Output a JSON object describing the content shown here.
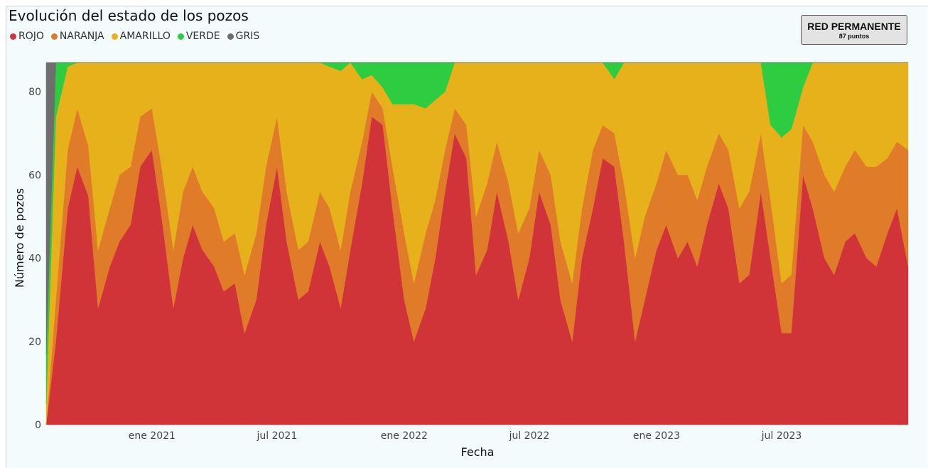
{
  "title": "Evolución del estado de los pozos",
  "badge": {
    "title": "RED PERMANENTE",
    "subtitle": "87 puntos"
  },
  "chart_data": {
    "type": "area",
    "stacked": true,
    "title": "Evolución del estado de los pozos",
    "xlabel": "Fecha",
    "ylabel": "Número de pozos",
    "ylim": [
      0,
      87
    ],
    "yticks": [
      0,
      20,
      40,
      60,
      80
    ],
    "xlim": [
      "2020-08-01",
      "2023-12-31"
    ],
    "xticks": [
      {
        "date": "2021-01-01",
        "label": "ene 2021"
      },
      {
        "date": "2021-07-01",
        "label": "jul 2021"
      },
      {
        "date": "2022-01-01",
        "label": "ene 2022"
      },
      {
        "date": "2022-07-01",
        "label": "jul 2022"
      },
      {
        "date": "2023-01-01",
        "label": "ene 2023"
      },
      {
        "date": "2023-07-01",
        "label": "jul 2023"
      }
    ],
    "legend_position": "top-left",
    "grid": false,
    "dates": [
      "2020-08-01",
      "2020-08-15",
      "2020-09-01",
      "2020-09-15",
      "2020-10-01",
      "2020-10-15",
      "2020-11-01",
      "2020-11-15",
      "2020-12-01",
      "2020-12-15",
      "2021-01-01",
      "2021-01-15",
      "2021-02-01",
      "2021-02-15",
      "2021-03-01",
      "2021-03-15",
      "2021-04-01",
      "2021-04-15",
      "2021-05-01",
      "2021-05-15",
      "2021-06-01",
      "2021-06-15",
      "2021-07-01",
      "2021-07-15",
      "2021-08-01",
      "2021-08-15",
      "2021-09-01",
      "2021-09-15",
      "2021-10-01",
      "2021-10-15",
      "2021-11-01",
      "2021-11-15",
      "2021-12-01",
      "2021-12-15",
      "2022-01-01",
      "2022-01-15",
      "2022-02-01",
      "2022-02-15",
      "2022-03-01",
      "2022-03-15",
      "2022-04-01",
      "2022-04-15",
      "2022-05-01",
      "2022-05-15",
      "2022-06-01",
      "2022-06-15",
      "2022-07-01",
      "2022-07-15",
      "2022-08-01",
      "2022-08-15",
      "2022-09-01",
      "2022-09-15",
      "2022-10-01",
      "2022-10-15",
      "2022-11-01",
      "2022-11-15",
      "2022-12-01",
      "2022-12-15",
      "2023-01-01",
      "2023-01-15",
      "2023-02-01",
      "2023-02-15",
      "2023-03-01",
      "2023-03-15",
      "2023-04-01",
      "2023-04-15",
      "2023-05-01",
      "2023-05-15",
      "2023-06-01",
      "2023-06-15",
      "2023-07-01",
      "2023-07-15",
      "2023-08-01",
      "2023-08-15",
      "2023-09-01",
      "2023-09-15",
      "2023-10-01",
      "2023-10-15",
      "2023-11-01",
      "2023-11-15",
      "2023-12-01",
      "2023-12-15",
      "2023-12-31"
    ],
    "series": [
      {
        "name": "ROJO",
        "color": "#d13438",
        "values": [
          0,
          20,
          52,
          62,
          55,
          28,
          38,
          44,
          48,
          62,
          66,
          50,
          28,
          40,
          48,
          42,
          38,
          32,
          34,
          22,
          30,
          48,
          62,
          44,
          30,
          32,
          44,
          38,
          28,
          42,
          58,
          74,
          72,
          52,
          30,
          20,
          28,
          40,
          56,
          70,
          64,
          36,
          42,
          56,
          44,
          30,
          40,
          56,
          48,
          30,
          20,
          40,
          52,
          64,
          62,
          44,
          20,
          30,
          42,
          48,
          40,
          44,
          38,
          48,
          58,
          52,
          34,
          36,
          56,
          40,
          22,
          22,
          60,
          52,
          40,
          36,
          44,
          46,
          40,
          38,
          46,
          52,
          38
        ]
      },
      {
        "name": "NARANJA",
        "color": "#e07b2a",
        "values": [
          0,
          10,
          14,
          14,
          12,
          14,
          14,
          16,
          14,
          12,
          10,
          12,
          14,
          16,
          14,
          14,
          14,
          12,
          12,
          14,
          16,
          14,
          12,
          12,
          12,
          12,
          12,
          14,
          14,
          14,
          10,
          6,
          4,
          10,
          16,
          14,
          18,
          14,
          10,
          6,
          8,
          14,
          16,
          12,
          14,
          16,
          12,
          10,
          12,
          14,
          14,
          12,
          14,
          8,
          8,
          14,
          20,
          20,
          16,
          18,
          20,
          16,
          16,
          14,
          12,
          14,
          18,
          20,
          14,
          14,
          12,
          14,
          12,
          16,
          20,
          20,
          18,
          20,
          22,
          24,
          18,
          16,
          28
        ]
      },
      {
        "name": "AMARILLO",
        "color": "#e6b11b",
        "values": [
          5,
          44,
          20,
          11,
          20,
          45,
          35,
          27,
          25,
          13,
          11,
          25,
          45,
          31,
          25,
          31,
          35,
          43,
          41,
          51,
          41,
          25,
          13,
          31,
          45,
          43,
          31,
          34,
          43,
          31,
          15,
          4,
          5,
          15,
          31,
          43,
          30,
          24,
          14,
          11,
          15,
          37,
          29,
          19,
          29,
          41,
          35,
          21,
          27,
          43,
          53,
          35,
          21,
          15,
          13,
          29,
          47,
          37,
          29,
          21,
          27,
          27,
          33,
          25,
          17,
          21,
          35,
          31,
          17,
          18,
          35,
          35,
          9,
          19,
          27,
          31,
          25,
          21,
          25,
          25,
          23,
          19,
          21
        ]
      },
      {
        "name": "VERDE",
        "color": "#2ecc40",
        "values": [
          12,
          13,
          1,
          0,
          0,
          0,
          0,
          0,
          0,
          0,
          0,
          0,
          0,
          0,
          0,
          0,
          0,
          0,
          0,
          0,
          0,
          0,
          0,
          0,
          0,
          0,
          0,
          1,
          2,
          0,
          4,
          3,
          6,
          10,
          10,
          10,
          11,
          9,
          7,
          0,
          0,
          0,
          0,
          0,
          0,
          0,
          0,
          0,
          0,
          0,
          0,
          0,
          0,
          0,
          4,
          0,
          0,
          0,
          0,
          0,
          0,
          0,
          0,
          0,
          0,
          0,
          0,
          0,
          0,
          15,
          18,
          16,
          6,
          0,
          0,
          0,
          0,
          0,
          0,
          0,
          0,
          0,
          0
        ]
      },
      {
        "name": "GRIS",
        "color": "#6e6e6e",
        "values": [
          70,
          0,
          0,
          0,
          0,
          0,
          0,
          0,
          0,
          0,
          0,
          0,
          0,
          0,
          0,
          0,
          0,
          0,
          0,
          0,
          0,
          0,
          0,
          0,
          0,
          0,
          0,
          0,
          0,
          0,
          0,
          0,
          0,
          0,
          0,
          0,
          0,
          0,
          0,
          0,
          0,
          0,
          0,
          0,
          0,
          0,
          0,
          0,
          0,
          0,
          0,
          0,
          0,
          0,
          0,
          0,
          0,
          0,
          0,
          0,
          0,
          0,
          0,
          0,
          0,
          0,
          0,
          0,
          0,
          0,
          0,
          0,
          0,
          0,
          0,
          0,
          0,
          0,
          0,
          0,
          0,
          0,
          0
        ]
      }
    ]
  }
}
